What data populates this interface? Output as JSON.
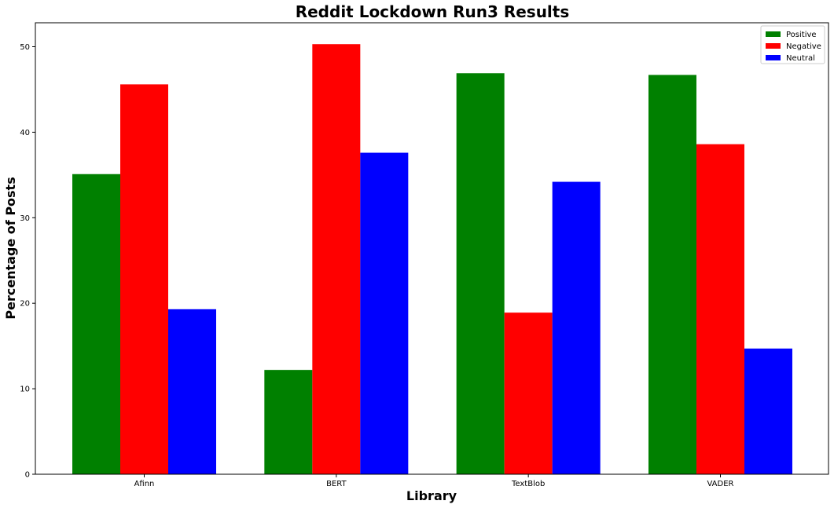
{
  "chart_data": {
    "type": "bar",
    "title": "Reddit Lockdown Run3 Results",
    "xlabel": "Library",
    "ylabel": "Percentage of Posts",
    "categories": [
      "Afinn",
      "BERT",
      "TextBlob",
      "VADER"
    ],
    "series": [
      {
        "name": "Positive",
        "color": "#008000",
        "values": [
          35.1,
          12.2,
          46.9,
          46.7
        ]
      },
      {
        "name": "Negative",
        "color": "#ff0000",
        "values": [
          45.6,
          50.3,
          18.9,
          38.6
        ]
      },
      {
        "name": "Neutral",
        "color": "#0000ff",
        "values": [
          19.3,
          37.6,
          34.2,
          14.7
        ]
      }
    ],
    "ylim": [
      0,
      52.8
    ],
    "yticks": [
      0,
      10,
      20,
      30,
      40,
      50
    ],
    "grid": false,
    "legend_position": "top-right"
  }
}
